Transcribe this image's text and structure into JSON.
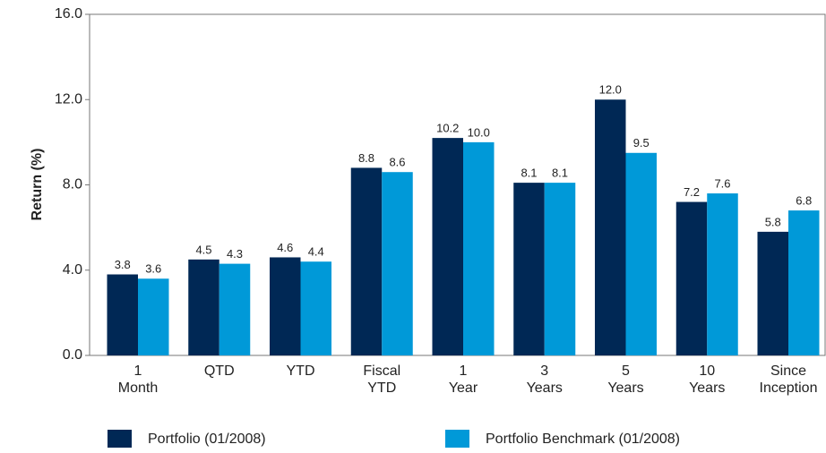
{
  "chart_data": {
    "type": "bar",
    "y_label": "Return (%)",
    "categories": [
      "1\nMonth",
      "QTD",
      "YTD",
      "Fiscal\nYTD",
      "1\nYear",
      "3\nYears",
      "5\nYears",
      "10\nYears",
      "Since\nInception"
    ],
    "series": [
      {
        "name": "Portfolio (01/2008)",
        "color": "#002855",
        "values": [
          3.8,
          4.5,
          4.6,
          8.8,
          10.2,
          8.1,
          12.0,
          7.2,
          5.8
        ],
        "value_labels": [
          "3.8",
          "4.5",
          "4.6",
          "8.8",
          "10.2",
          "8.1",
          "12.0",
          "7.2",
          "5.8"
        ]
      },
      {
        "name": "Portfolio Benchmark (01/2008)",
        "color": "#0099d8",
        "values": [
          3.6,
          4.3,
          4.4,
          8.6,
          10.0,
          8.1,
          9.5,
          7.6,
          6.8
        ],
        "value_labels": [
          "3.6",
          "4.3",
          "4.4",
          "8.6",
          "10.0",
          "8.1",
          "9.5",
          "7.6",
          "6.8"
        ]
      }
    ],
    "ylim": [
      0,
      16
    ],
    "yticks": [
      {
        "value": 0,
        "label": "0.0"
      },
      {
        "value": 4,
        "label": "4.0"
      },
      {
        "value": 8,
        "label": "8.0"
      },
      {
        "value": 12,
        "label": "12.0"
      },
      {
        "value": 16,
        "label": "16.0"
      }
    ],
    "grid": false,
    "legend": "bottom"
  }
}
